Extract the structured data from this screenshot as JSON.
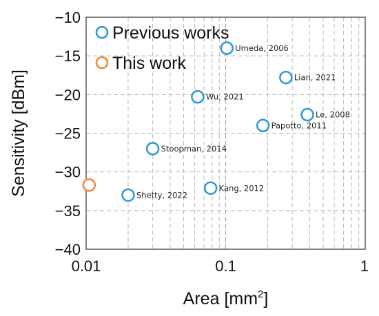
{
  "chart_data": {
    "type": "scatter",
    "title": "",
    "xlabel": "Area [mm",
    "xlabel_sup": "2",
    "xlabel_end": "]",
    "ylabel": "Sensitivity [dBm]",
    "x_scale": "log",
    "xlim": [
      0.01,
      1
    ],
    "ylim": [
      -40,
      -10
    ],
    "x_ticks": [
      {
        "value": 0.01,
        "label": "0.01"
      },
      {
        "value": 0.1,
        "label": "0.1"
      },
      {
        "value": 1,
        "label": "1"
      }
    ],
    "y_ticks": [
      {
        "value": -10,
        "label": "−10"
      },
      {
        "value": -15,
        "label": "−15"
      },
      {
        "value": -20,
        "label": "−20"
      },
      {
        "value": -25,
        "label": "−25"
      },
      {
        "value": -30,
        "label": "−30"
      },
      {
        "value": -35,
        "label": "−35"
      },
      {
        "value": -40,
        "label": "−40"
      }
    ],
    "grid": true,
    "legend_position": "top-left",
    "series": [
      {
        "name": "Previous works",
        "color": "#2e9bd6",
        "points": [
          {
            "x": 0.102,
            "y": -14.0,
            "label": "Umeda, 2006"
          },
          {
            "x": 0.27,
            "y": -17.8,
            "label": "Lian, 2021"
          },
          {
            "x": 0.063,
            "y": -20.3,
            "label": "Wu, 2021"
          },
          {
            "x": 0.385,
            "y": -22.6,
            "label": "Le, 2008"
          },
          {
            "x": 0.185,
            "y": -24.0,
            "label": "Papotto, 2011"
          },
          {
            "x": 0.03,
            "y": -27.0,
            "label": "Stoopman, 2014"
          },
          {
            "x": 0.078,
            "y": -32.1,
            "label": "Kang, 2012"
          },
          {
            "x": 0.02,
            "y": -33.0,
            "label": "Shetty, 2022"
          }
        ]
      },
      {
        "name": "This work",
        "color": "#f08a3c",
        "points": [
          {
            "x": 0.0105,
            "y": -31.7,
            "label": ""
          }
        ]
      }
    ]
  }
}
